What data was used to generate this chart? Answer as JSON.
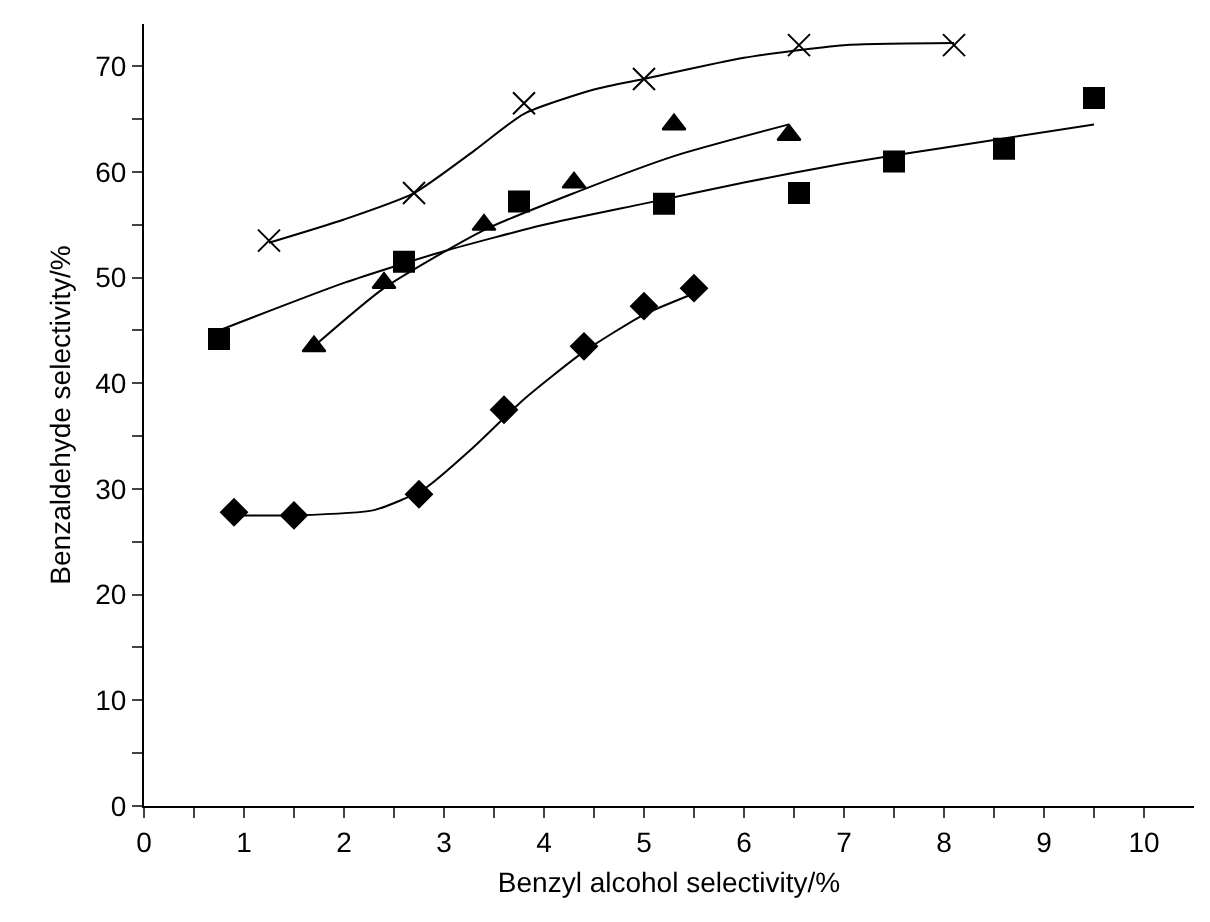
{
  "chart_data": {
    "type": "scatter",
    "xlabel": "Benzyl alcohol selectivity/%",
    "ylabel": "Benzaldehyde selectivity/%",
    "xlim": [
      0,
      10.5
    ],
    "ylim": [
      0,
      74
    ],
    "xticks": [
      0,
      {
        "value": 0.5,
        "label": null
      },
      1,
      {
        "value": 1.5,
        "label": null
      },
      2,
      {
        "value": 2.5,
        "label": null
      },
      3,
      {
        "value": 3.5,
        "label": null
      },
      4,
      {
        "value": 4.5,
        "label": null
      },
      5,
      {
        "value": 5.5,
        "label": null
      },
      6,
      {
        "value": 6.5,
        "label": null
      },
      7,
      {
        "value": 7.5,
        "label": null
      },
      8,
      {
        "value": 8.5,
        "label": null
      },
      9,
      {
        "value": 9.5,
        "label": null
      },
      10
    ],
    "yticks": [
      0,
      {
        "value": 5,
        "label": null
      },
      10,
      {
        "value": 15,
        "label": null
      },
      20,
      {
        "value": 25,
        "label": null
      },
      30,
      {
        "value": 35,
        "label": null
      },
      40,
      {
        "value": 45,
        "label": null
      },
      50,
      {
        "value": 55,
        "label": null
      },
      60,
      {
        "value": 65,
        "label": null
      },
      70
    ],
    "grid": false,
    "series": [
      {
        "type": "scatter",
        "marker": "cross",
        "color": "#000000",
        "x": [
          1.25,
          2.7,
          3.8,
          5,
          6.55,
          8.1
        ],
        "values": [
          53.5,
          58,
          66.5,
          68.8,
          72,
          72
        ]
      },
      {
        "type": "scatter",
        "marker": "triangle",
        "color": "#000000",
        "x": [
          1.7,
          2.4,
          3.4,
          4.3,
          5.3,
          6.45
        ],
        "values": [
          43.5,
          49.5,
          55,
          59,
          64.5,
          63.5
        ]
      },
      {
        "type": "scatter",
        "marker": "square",
        "color": "#000000",
        "x": [
          0.75,
          2.6,
          3.75,
          5.2,
          6.55,
          7.5,
          8.6,
          9.5
        ],
        "values": [
          44.2,
          51.5,
          57.2,
          57,
          58,
          61,
          62.2,
          67
        ]
      },
      {
        "type": "scatter",
        "marker": "diamond",
        "color": "#000000",
        "x": [
          0.9,
          1.5,
          2.75,
          3.6,
          4.4,
          5,
          5.5
        ],
        "values": [
          27.8,
          27.5,
          29.5,
          37.5,
          43.5,
          47.3,
          49
        ]
      },
      {
        "type": "line",
        "marker": "none",
        "line_style": "solid",
        "color": "#000000",
        "x": [
          1.25,
          2,
          2.7,
          3.3,
          3.8,
          4.5,
          5,
          6,
          7,
          8.1
        ],
        "values": [
          53.3,
          55.5,
          58,
          62,
          65.5,
          67.8,
          68.8,
          70.8,
          72,
          72.2
        ]
      },
      {
        "type": "line",
        "marker": "none",
        "line_style": "solid",
        "color": "#000000",
        "x": [
          1.7,
          2.4,
          3.4,
          4.3,
          5.3,
          6.45
        ],
        "values": [
          43.5,
          49,
          54.5,
          58,
          61.5,
          64.5
        ]
      },
      {
        "type": "line",
        "marker": "none",
        "line_style": "solid",
        "color": "#000000",
        "x": [
          0.75,
          2,
          3,
          4,
          5,
          6,
          7,
          8,
          9.5
        ],
        "values": [
          45,
          49.5,
          52.5,
          55,
          57,
          59,
          60.8,
          62.3,
          64.5
        ]
      },
      {
        "type": "line",
        "marker": "none",
        "line_style": "solid",
        "color": "#000000",
        "x": [
          0.9,
          1.5,
          2.3,
          2.8,
          3.3,
          3.8,
          4.4,
          5,
          5.5
        ],
        "values": [
          27.5,
          27.5,
          28,
          30,
          34,
          38.5,
          43,
          46.5,
          48.5
        ]
      }
    ]
  }
}
